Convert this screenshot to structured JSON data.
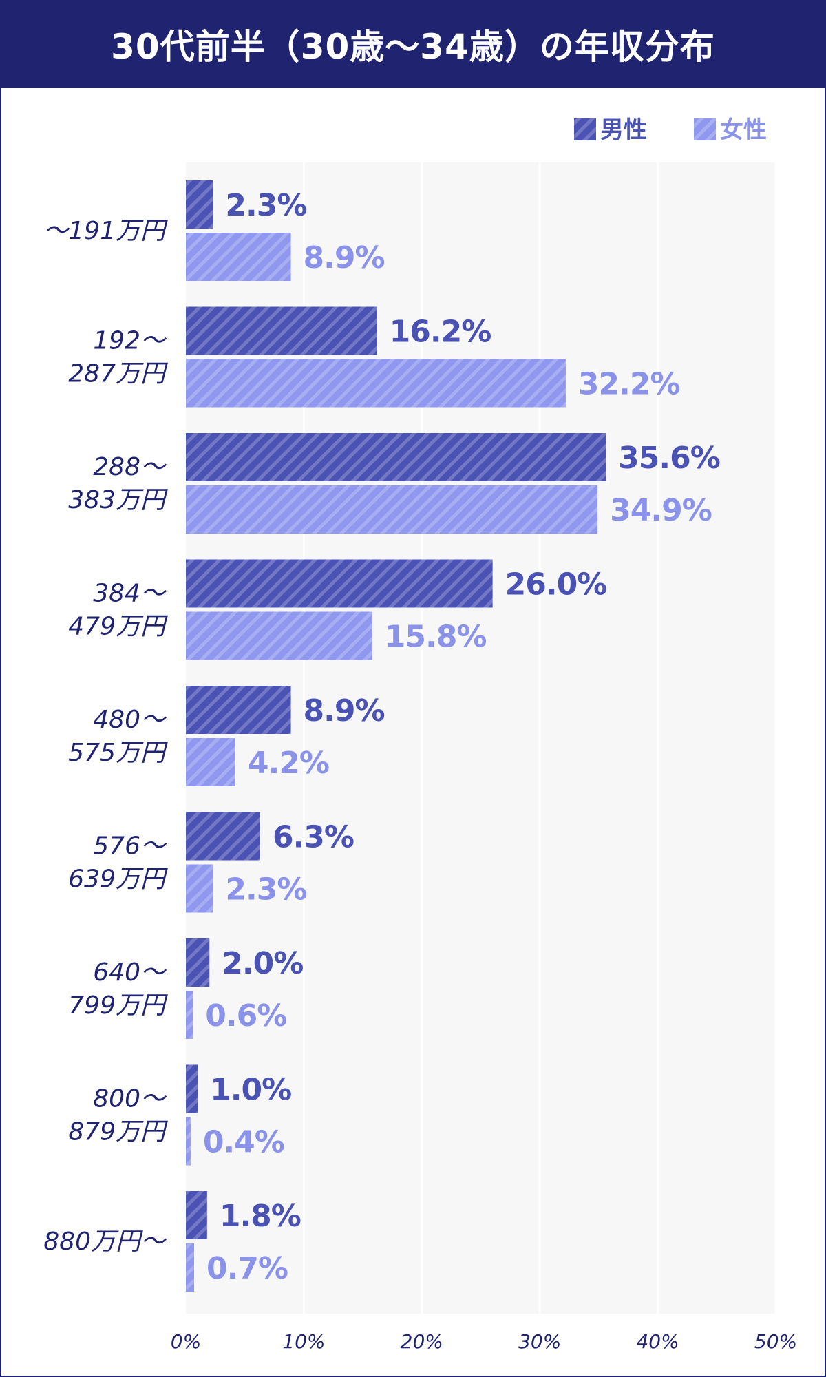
{
  "chart_data": {
    "type": "bar",
    "orientation": "horizontal",
    "title": "30代前半（30歳〜34歳）の年収分布",
    "categories": [
      [
        "〜191万円"
      ],
      [
        "192〜",
        "287万円"
      ],
      [
        "288〜",
        "383万円"
      ],
      [
        "384〜",
        "479万円"
      ],
      [
        "480〜",
        "575万円"
      ],
      [
        "576〜",
        "639万円"
      ],
      [
        "640〜",
        "799万円"
      ],
      [
        "800〜",
        "879万円"
      ],
      [
        "880万円〜"
      ]
    ],
    "series": [
      {
        "name": "男性",
        "values": [
          2.3,
          16.2,
          35.6,
          26.0,
          8.9,
          6.3,
          2.0,
          1.0,
          1.8
        ],
        "color": "#4a52b3",
        "label_color": "#4a52b3"
      },
      {
        "name": "女性",
        "values": [
          8.9,
          32.2,
          34.9,
          15.8,
          4.2,
          2.3,
          0.6,
          0.4,
          0.7
        ],
        "color": "#8f97ee",
        "label_color": "#8a92ea"
      }
    ],
    "value_suffix": "%",
    "xlim": [
      0,
      50
    ],
    "xticks": [
      0,
      10,
      20,
      30,
      40,
      50
    ],
    "xtick_labels": [
      "0%",
      "10%",
      "20%",
      "30%",
      "40%",
      "50%"
    ],
    "grid": true,
    "legend_position": "top-right",
    "plot_background": "#f7f7f7",
    "category_label_color": "#1f2370"
  }
}
